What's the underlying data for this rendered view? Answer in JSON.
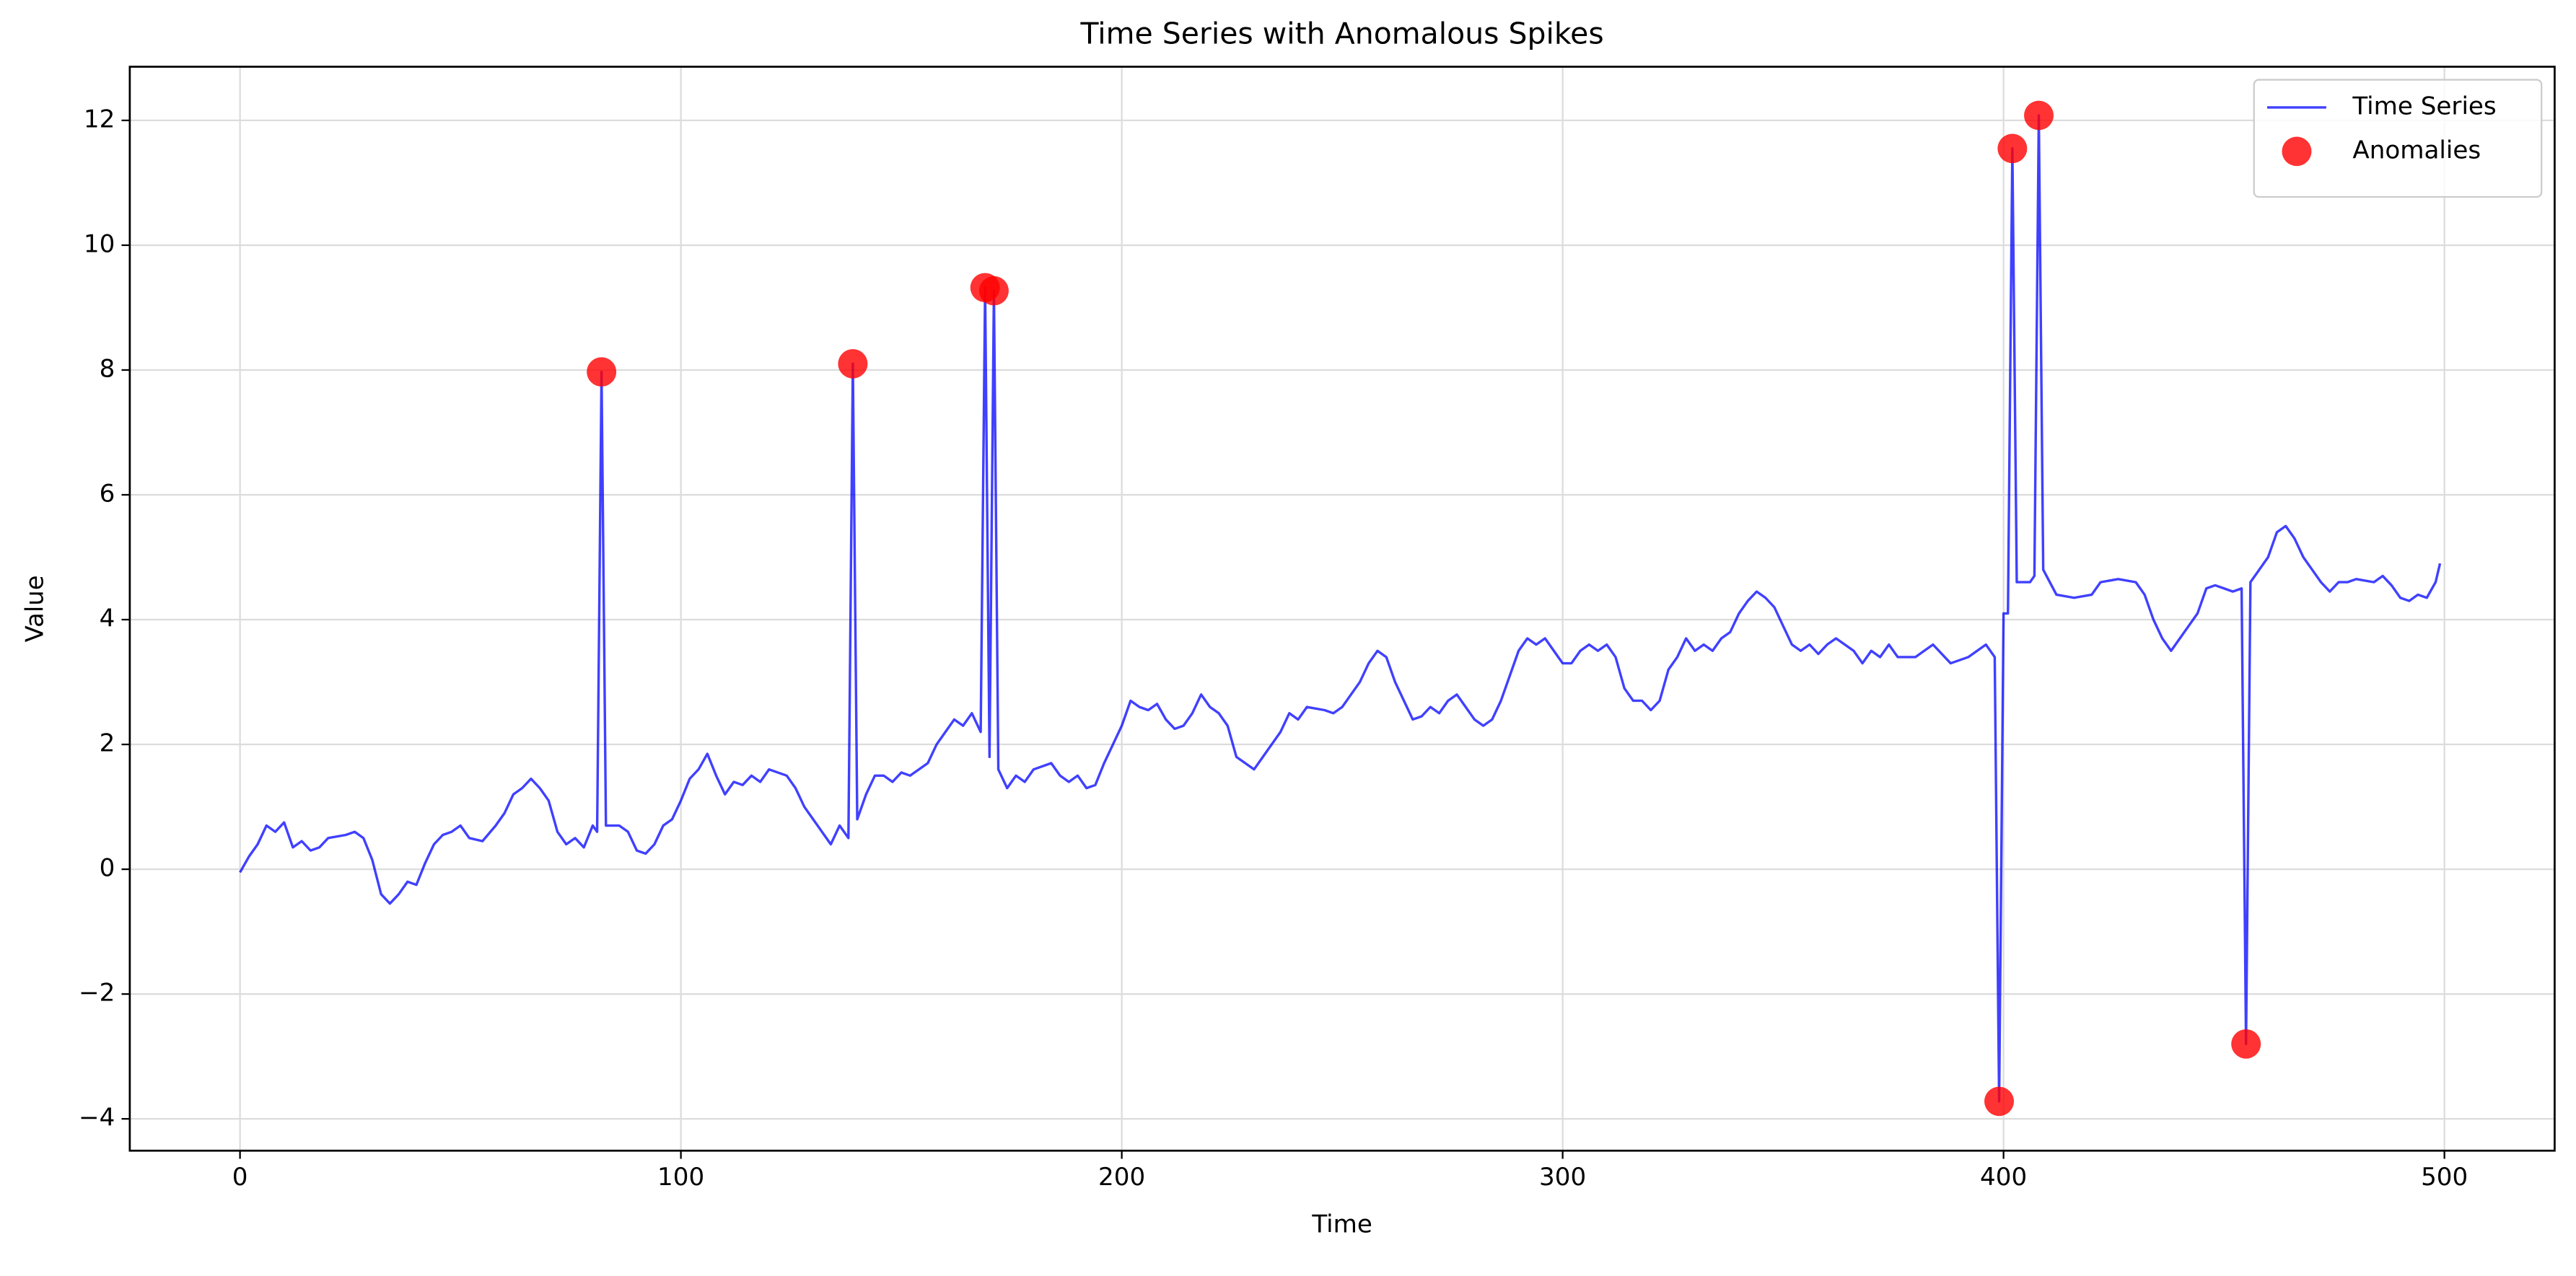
{
  "chart_data": {
    "type": "line",
    "title": "Time Series with Anomalous Spikes",
    "xlabel": "Time",
    "ylabel": "Value",
    "xlim": [
      -25,
      525
    ],
    "ylim": [
      -4.51,
      12.86
    ],
    "xticks": [
      0,
      100,
      200,
      300,
      400,
      500
    ],
    "yticks": [
      {
        "value": -4,
        "label": "−4"
      },
      {
        "value": -2,
        "label": "−2"
      },
      0,
      2,
      4,
      6,
      8,
      10,
      12
    ],
    "grid": true,
    "legend": "upper right",
    "series": [
      {
        "name": "Time Series",
        "type": "line",
        "color": "#0000ff",
        "x": [
          0,
          2,
          4,
          6,
          8,
          10,
          12,
          14,
          16,
          18,
          20,
          24,
          26,
          28,
          30,
          32,
          34,
          36,
          38,
          40,
          42,
          44,
          46,
          48,
          50,
          52,
          55,
          58,
          60,
          62,
          64,
          66,
          68,
          70,
          72,
          74,
          76,
          78,
          80,
          81,
          82,
          83,
          86,
          88,
          90,
          92,
          94,
          96,
          98,
          100,
          102,
          104,
          106,
          108,
          110,
          112,
          114,
          116,
          118,
          120,
          124,
          126,
          128,
          130,
          132,
          134,
          136,
          138,
          139,
          140,
          142,
          144,
          146,
          148,
          150,
          152,
          154,
          156,
          158,
          160,
          162,
          164,
          166,
          168,
          169,
          170,
          171,
          172,
          174,
          176,
          178,
          180,
          184,
          186,
          188,
          190,
          192,
          194,
          196,
          198,
          200,
          202,
          204,
          206,
          208,
          210,
          212,
          214,
          216,
          218,
          220,
          222,
          224,
          226,
          228,
          230,
          232,
          234,
          236,
          238,
          240,
          242,
          246,
          248,
          250,
          252,
          254,
          256,
          258,
          260,
          262,
          264,
          266,
          268,
          270,
          272,
          274,
          276,
          278,
          280,
          282,
          284,
          286,
          288,
          290,
          292,
          294,
          296,
          298,
          300,
          302,
          304,
          306,
          308,
          310,
          312,
          314,
          316,
          318,
          320,
          322,
          324,
          326,
          328,
          330,
          332,
          334,
          336,
          338,
          340,
          342,
          344,
          346,
          348,
          350,
          352,
          354,
          356,
          358,
          360,
          362,
          364,
          366,
          368,
          370,
          372,
          374,
          376,
          380,
          384,
          388,
          392,
          396,
          398,
          399,
          400,
          401,
          402,
          403,
          406,
          407,
          408,
          409,
          412,
          416,
          420,
          422,
          426,
          430,
          432,
          434,
          436,
          438,
          440,
          442,
          444,
          446,
          448,
          450,
          452,
          454,
          455,
          456,
          458,
          460,
          462,
          464,
          466,
          468,
          470,
          472,
          474,
          476,
          478,
          480,
          484,
          486,
          488,
          490,
          492,
          494,
          496,
          498,
          499
        ],
        "values": [
          -0.05,
          0.2,
          0.4,
          0.7,
          0.6,
          0.75,
          0.35,
          0.45,
          0.3,
          0.35,
          0.5,
          0.55,
          0.6,
          0.5,
          0.15,
          -0.4,
          -0.55,
          -0.4,
          -0.2,
          -0.25,
          0.1,
          0.4,
          0.55,
          0.6,
          0.7,
          0.5,
          0.45,
          0.7,
          0.9,
          1.2,
          1.3,
          1.45,
          1.3,
          1.1,
          0.6,
          0.4,
          0.5,
          0.35,
          0.7,
          0.6,
          7.97,
          0.7,
          0.7,
          0.6,
          0.3,
          0.25,
          0.4,
          0.7,
          0.8,
          1.1,
          1.45,
          1.6,
          1.85,
          1.5,
          1.2,
          1.4,
          1.35,
          1.5,
          1.4,
          1.6,
          1.5,
          1.3,
          1.0,
          0.8,
          0.6,
          0.4,
          0.7,
          0.5,
          8.1,
          0.8,
          1.2,
          1.5,
          1.5,
          1.4,
          1.55,
          1.5,
          1.6,
          1.7,
          2.0,
          2.2,
          2.4,
          2.3,
          2.5,
          2.2,
          9.32,
          1.8,
          9.27,
          1.6,
          1.3,
          1.5,
          1.4,
          1.6,
          1.7,
          1.5,
          1.4,
          1.5,
          1.3,
          1.35,
          1.7,
          2.0,
          2.3,
          2.7,
          2.6,
          2.55,
          2.65,
          2.4,
          2.25,
          2.3,
          2.5,
          2.8,
          2.6,
          2.5,
          2.3,
          1.8,
          1.7,
          1.6,
          1.8,
          2.0,
          2.2,
          2.5,
          2.4,
          2.6,
          2.55,
          2.5,
          2.6,
          2.8,
          3.0,
          3.3,
          3.5,
          3.4,
          3.0,
          2.7,
          2.4,
          2.45,
          2.6,
          2.5,
          2.7,
          2.8,
          2.6,
          2.4,
          2.3,
          2.4,
          2.7,
          3.1,
          3.5,
          3.7,
          3.6,
          3.7,
          3.5,
          3.3,
          3.3,
          3.5,
          3.6,
          3.5,
          3.6,
          3.4,
          2.9,
          2.7,
          2.7,
          2.55,
          2.7,
          3.2,
          3.4,
          3.7,
          3.5,
          3.6,
          3.5,
          3.7,
          3.8,
          4.1,
          4.3,
          4.45,
          4.35,
          4.2,
          3.9,
          3.6,
          3.5,
          3.6,
          3.45,
          3.6,
          3.7,
          3.6,
          3.5,
          3.3,
          3.5,
          3.4,
          3.6,
          3.4,
          3.4,
          3.6,
          3.3,
          3.4,
          3.6,
          3.4,
          -3.72,
          4.1,
          4.1,
          11.55,
          4.6,
          4.6,
          4.7,
          12.08,
          4.8,
          4.4,
          4.35,
          4.4,
          4.6,
          4.65,
          4.6,
          4.4,
          4.0,
          3.7,
          3.5,
          3.7,
          3.9,
          4.1,
          4.5,
          4.55,
          4.5,
          4.45,
          4.5,
          -2.8,
          4.6,
          4.8,
          5.0,
          5.4,
          5.5,
          5.3,
          5.0,
          4.8,
          4.6,
          4.45,
          4.6,
          4.6,
          4.65,
          4.6,
          4.7,
          4.55,
          4.35,
          4.3,
          4.4,
          4.35,
          4.6,
          4.9
        ]
      },
      {
        "name": "Anomalies",
        "type": "scatter",
        "color": "#ff0000",
        "x": [
          82,
          139,
          169,
          171,
          399,
          402,
          408,
          455
        ],
        "values": [
          7.97,
          8.1,
          9.32,
          9.27,
          -3.72,
          11.55,
          12.08,
          -2.8
        ]
      }
    ]
  }
}
